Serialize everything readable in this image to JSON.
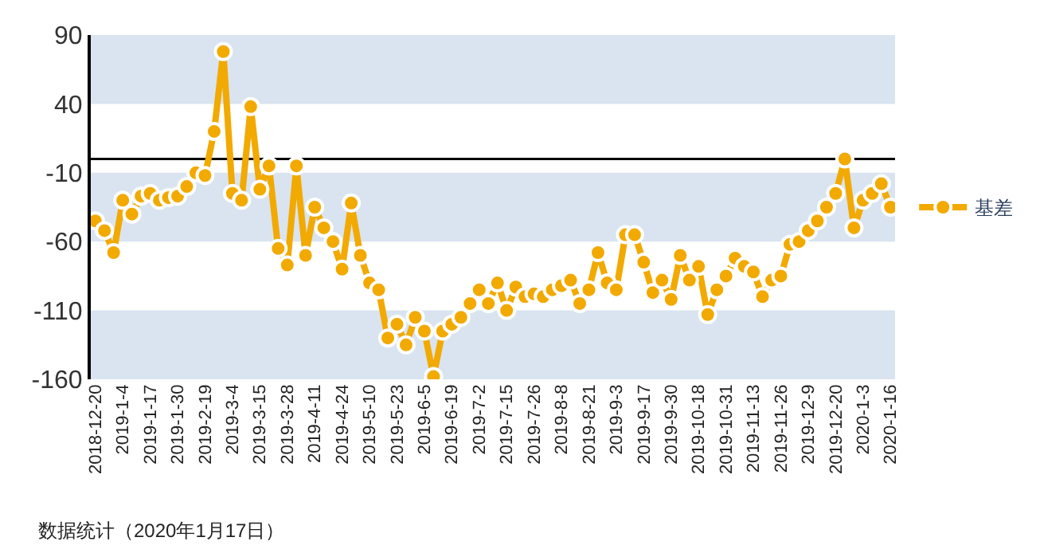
{
  "chart_data": {
    "type": "line",
    "categories": [
      "2018-12-20",
      null,
      null,
      "2019-1-4",
      null,
      null,
      "2019-1-17",
      null,
      null,
      "2019-1-30",
      null,
      null,
      "2019-2-19",
      null,
      null,
      "2019-3-4",
      null,
      null,
      "2019-3-15",
      null,
      null,
      "2019-3-28",
      null,
      null,
      "2019-4-11",
      null,
      null,
      "2019-4-24",
      null,
      null,
      "2019-5-10",
      null,
      null,
      "2019-5-23",
      null,
      null,
      "2019-6-5",
      null,
      null,
      "2019-6-19",
      null,
      null,
      "2019-7-2",
      null,
      null,
      "2019-7-15",
      null,
      null,
      "2019-7-26",
      null,
      null,
      "2019-8-8",
      null,
      null,
      "2019-8-21",
      null,
      null,
      "2019-9-3",
      null,
      null,
      "2019-9-17",
      null,
      null,
      "2019-9-30",
      null,
      null,
      "2019-10-18",
      null,
      null,
      "2019-10-31",
      null,
      null,
      "2019-11-13",
      null,
      null,
      "2019-11-26",
      null,
      null,
      "2019-12-9",
      null,
      null,
      "2019-12-20",
      null,
      null,
      "2020-1-3",
      null,
      null,
      "2020-1-16"
    ],
    "series": [
      {
        "name": "基差",
        "color": "#f2a900",
        "values": [
          -45,
          -52,
          -68,
          -30,
          -40,
          -27,
          -25,
          -30,
          -28,
          -27,
          -20,
          -10,
          -12,
          20,
          78,
          -25,
          -30,
          38,
          -22,
          -5,
          -65,
          -77,
          -5,
          -70,
          -35,
          -50,
          -60,
          -80,
          -32,
          -70,
          -90,
          -95,
          -130,
          -120,
          -135,
          -115,
          -125,
          -158,
          -125,
          -120,
          -115,
          -105,
          -95,
          -105,
          -90,
          -110,
          -93,
          -100,
          -98,
          -100,
          -95,
          -92,
          -88,
          -105,
          -95,
          -68,
          -90,
          -95,
          -55,
          -55,
          -75,
          -97,
          -88,
          -102,
          -70,
          -88,
          -78,
          -113,
          -95,
          -85,
          -72,
          -78,
          -82,
          -100,
          -88,
          -85,
          -62,
          -60,
          -52,
          -45,
          -35,
          -25,
          0,
          -50,
          -30,
          -25,
          -18,
          -35
        ]
      }
    ],
    "ylim": [
      -160,
      90
    ],
    "yticks": [
      90,
      40,
      -10,
      -60,
      -110,
      -160
    ],
    "bands": [
      {
        "axis": "y",
        "from": 40,
        "to": 90,
        "color": "#d9e4f0"
      },
      {
        "axis": "y",
        "from": -60,
        "to": -10,
        "color": "#d9e4f0"
      },
      {
        "axis": "y",
        "from": -160,
        "to": -110,
        "color": "#d9e4f0"
      }
    ],
    "ref_lines": [
      {
        "axis": "y",
        "value": 0,
        "color": "#000000"
      }
    ],
    "grid": false,
    "legend": "right",
    "marker": "circle",
    "line_style": "solid",
    "annotations": [
      "数据统计（2020年1月17日）"
    ]
  }
}
